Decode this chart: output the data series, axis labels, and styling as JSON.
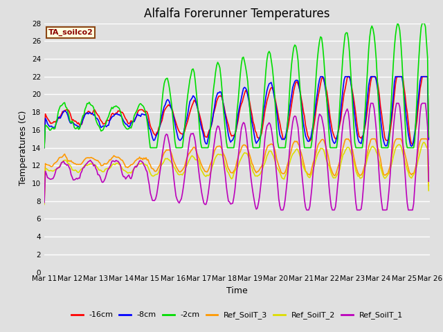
{
  "title": "Alfalfa Forerunner Temperatures",
  "xlabel": "Time",
  "ylabel": "Temperatures (C)",
  "annotation": "TA_soilco2",
  "xlim": [
    0,
    360
  ],
  "ylim": [
    0,
    28
  ],
  "yticks": [
    0,
    2,
    4,
    6,
    8,
    10,
    12,
    14,
    16,
    18,
    20,
    22,
    24,
    26,
    28
  ],
  "xtick_labels": [
    "Mar 11",
    "Mar 12",
    "Mar 13",
    "Mar 14",
    "Mar 15",
    "Mar 16",
    "Mar 17",
    "Mar 18",
    "Mar 19",
    "Mar 20",
    "Mar 21",
    "Mar 22",
    "Mar 23",
    "Mar 24",
    "Mar 25",
    "Mar 26"
  ],
  "xtick_positions": [
    0,
    24,
    48,
    72,
    96,
    120,
    144,
    168,
    192,
    216,
    240,
    264,
    288,
    312,
    336,
    360
  ],
  "legend_labels": [
    "-16cm",
    "-8cm",
    "-2cm",
    "Ref_SoilT_3",
    "Ref_SoilT_2",
    "Ref_SoilT_1"
  ],
  "line_colors": [
    "#ff0000",
    "#0000ff",
    "#00dd00",
    "#ff9900",
    "#dddd00",
    "#bb00bb"
  ],
  "line_width": 1.2,
  "bg_color": "#e0e0e0",
  "plot_bg_color": "#e0e0e0",
  "title_fontsize": 12,
  "label_fontsize": 9,
  "tick_fontsize": 7.5,
  "annot_fontsize": 8,
  "legend_fontsize": 8
}
